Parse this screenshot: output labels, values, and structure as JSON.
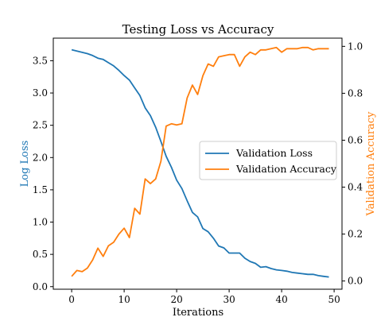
{
  "chart_data": {
    "type": "line",
    "title": "Testing Loss vs Accuracy",
    "xlabel": "Iterations",
    "ylabel_left": "Log Loss",
    "ylabel_right": "Validation Accuracy",
    "xlim": [
      -3.5,
      51.5
    ],
    "ylim_left": [
      -0.04,
      3.85
    ],
    "ylim_right": [
      -0.035,
      1.035
    ],
    "x_ticks": [
      0,
      10,
      20,
      30,
      40,
      50
    ],
    "y_left_ticks": [
      0.0,
      0.5,
      1.0,
      1.5,
      2.0,
      2.5,
      3.0,
      3.5
    ],
    "y_right_ticks": [
      0.0,
      0.2,
      0.4,
      0.6,
      0.8,
      1.0
    ],
    "grid": false,
    "legend_position": "right",
    "series": [
      {
        "name": "Validation Loss",
        "axis": "left",
        "color": "#1f77b4",
        "x": [
          0,
          1,
          2,
          3,
          4,
          5,
          6,
          7,
          8,
          9,
          10,
          11,
          12,
          13,
          14,
          15,
          16,
          17,
          18,
          19,
          20,
          21,
          22,
          23,
          24,
          25,
          26,
          27,
          28,
          29,
          30,
          31,
          32,
          33,
          34,
          35,
          36,
          37,
          38,
          39,
          40,
          41,
          42,
          43,
          44,
          45,
          46,
          47,
          48,
          49
        ],
        "values": [
          3.67,
          3.65,
          3.63,
          3.61,
          3.58,
          3.54,
          3.52,
          3.47,
          3.42,
          3.35,
          3.27,
          3.2,
          3.08,
          2.96,
          2.77,
          2.65,
          2.47,
          2.25,
          2.02,
          1.85,
          1.65,
          1.52,
          1.33,
          1.15,
          1.08,
          0.9,
          0.85,
          0.75,
          0.63,
          0.6,
          0.52,
          0.52,
          0.52,
          0.44,
          0.39,
          0.36,
          0.3,
          0.31,
          0.28,
          0.26,
          0.25,
          0.24,
          0.22,
          0.21,
          0.2,
          0.19,
          0.19,
          0.17,
          0.16,
          0.15
        ]
      },
      {
        "name": "Validation Accuracy",
        "axis": "right",
        "color": "#ff7f0e",
        "x": [
          0,
          1,
          2,
          3,
          4,
          5,
          6,
          7,
          8,
          9,
          10,
          11,
          12,
          13,
          14,
          15,
          16,
          17,
          18,
          19,
          20,
          21,
          22,
          23,
          24,
          25,
          26,
          27,
          28,
          29,
          30,
          31,
          32,
          33,
          34,
          35,
          36,
          37,
          38,
          39,
          40,
          41,
          42,
          43,
          44,
          45,
          46,
          47,
          48,
          49
        ],
        "values": [
          0.02,
          0.045,
          0.04,
          0.055,
          0.09,
          0.14,
          0.105,
          0.15,
          0.165,
          0.2,
          0.225,
          0.185,
          0.31,
          0.285,
          0.435,
          0.415,
          0.435,
          0.51,
          0.66,
          0.67,
          0.665,
          0.67,
          0.78,
          0.835,
          0.795,
          0.875,
          0.925,
          0.915,
          0.955,
          0.96,
          0.965,
          0.965,
          0.915,
          0.955,
          0.975,
          0.965,
          0.985,
          0.985,
          0.99,
          0.995,
          0.975,
          0.99,
          0.99,
          0.99,
          0.995,
          0.995,
          0.985,
          0.99,
          0.99,
          0.99
        ]
      }
    ]
  }
}
